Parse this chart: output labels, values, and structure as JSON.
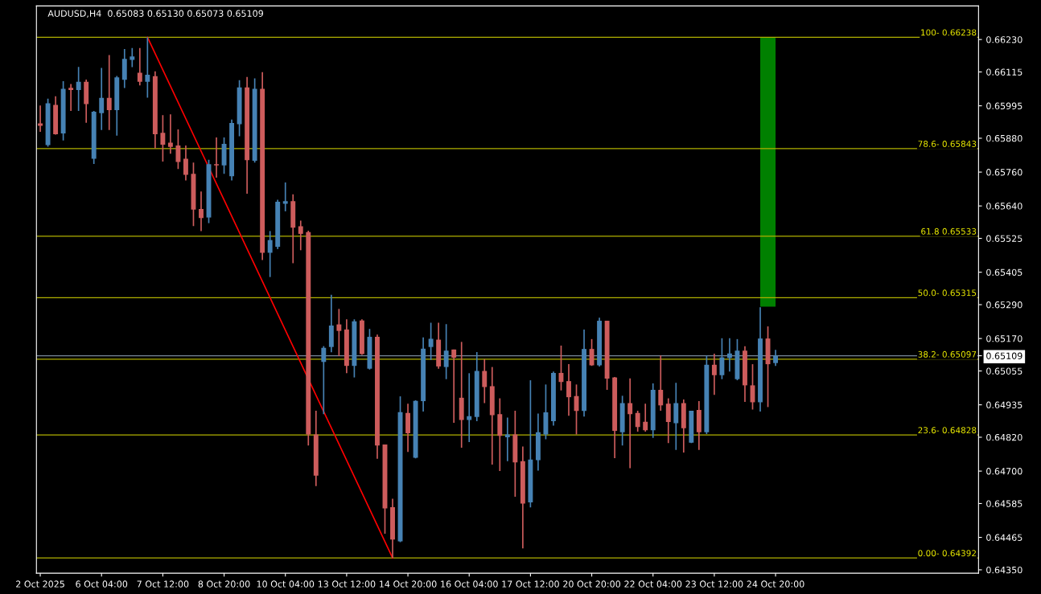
{
  "chart_data": {
    "type": "candlestick",
    "title": "AUDUSD,H4  0.65083 0.65130 0.65073 0.65109",
    "categories": [
      "2 Oct 2025",
      null,
      null,
      null,
      null,
      null,
      null,
      null,
      "6 Oct 04:00",
      null,
      null,
      null,
      null,
      null,
      null,
      null,
      "7 Oct 12:00",
      null,
      null,
      null,
      null,
      null,
      null,
      null,
      "8 Oct 20:00",
      null,
      null,
      null,
      null,
      null,
      null,
      null,
      "10 Oct 04:00",
      null,
      null,
      null,
      null,
      null,
      null,
      null,
      "13 Oct 12:00",
      null,
      null,
      null,
      null,
      null,
      null,
      null,
      "14 Oct 20:00",
      null,
      null,
      null,
      null,
      null,
      null,
      null,
      "16 Oct 04:00",
      null,
      null,
      null,
      null,
      null,
      null,
      null,
      "17 Oct 12:00",
      null,
      null,
      null,
      null,
      null,
      null,
      null,
      "20 Oct 20:00",
      null,
      null,
      null,
      null,
      null,
      null,
      null,
      "22 Oct 04:00",
      null,
      null,
      null,
      null,
      null,
      null,
      null,
      "23 Oct 12:00",
      null,
      null,
      null,
      null,
      null,
      null,
      null,
      "24 Oct 20:00",
      null,
      null,
      null,
      null,
      null,
      null,
      null,
      null,
      null,
      null,
      null,
      null,
      null,
      null,
      null,
      null,
      null,
      null,
      null,
      null,
      null,
      null,
      null,
      null,
      null,
      null
    ],
    "ohlc": [
      [
        0.65933,
        0.65996,
        0.65903,
        0.65924
      ],
      [
        0.65856,
        0.6602,
        0.6585,
        0.66004
      ],
      [
        0.65998,
        0.66029,
        0.65893,
        0.65894
      ],
      [
        0.65897,
        0.66082,
        0.65872,
        0.66055
      ],
      [
        0.66059,
        0.66072,
        0.65977,
        0.66051
      ],
      [
        0.66051,
        0.66133,
        0.65977,
        0.6608
      ],
      [
        0.6608,
        0.66088,
        0.65935,
        0.66001
      ],
      [
        0.65807,
        0.65977,
        0.65789,
        0.65974
      ],
      [
        0.65969,
        0.66129,
        0.65909,
        0.66023
      ],
      [
        0.66023,
        0.66175,
        0.65909,
        0.6598
      ],
      [
        0.6598,
        0.66101,
        0.65889,
        0.66096
      ],
      [
        0.66087,
        0.66196,
        0.66058,
        0.66161
      ],
      [
        0.66158,
        0.662,
        0.66132,
        0.6617
      ],
      [
        0.66112,
        0.662,
        0.66067,
        0.6608
      ],
      [
        0.6608,
        0.66238,
        0.66024,
        0.66105
      ],
      [
        0.661,
        0.66117,
        0.65844,
        0.65894
      ],
      [
        0.65899,
        0.65962,
        0.65797,
        0.65857
      ],
      [
        0.65864,
        0.65965,
        0.65825,
        0.65849
      ],
      [
        0.65854,
        0.65911,
        0.65771,
        0.65796
      ],
      [
        0.65807,
        0.65854,
        0.6573,
        0.6575
      ],
      [
        0.65754,
        0.65794,
        0.65569,
        0.65627
      ],
      [
        0.65629,
        0.65691,
        0.65551,
        0.65597
      ],
      [
        0.65599,
        0.65804,
        0.65579,
        0.65788
      ],
      [
        0.65788,
        0.65883,
        0.6574,
        0.65784
      ],
      [
        0.65784,
        0.65883,
        0.65754,
        0.6586
      ],
      [
        0.65745,
        0.65946,
        0.6573,
        0.65934
      ],
      [
        0.6593,
        0.66086,
        0.65887,
        0.6606
      ],
      [
        0.6606,
        0.66097,
        0.65683,
        0.65802
      ],
      [
        0.658,
        0.66092,
        0.65794,
        0.66055
      ],
      [
        0.66055,
        0.66114,
        0.65448,
        0.65474
      ],
      [
        0.65474,
        0.65551,
        0.65388,
        0.65519
      ],
      [
        0.65495,
        0.65662,
        0.65487,
        0.65655
      ],
      [
        0.65648,
        0.65723,
        0.65621,
        0.65657
      ],
      [
        0.65657,
        0.65681,
        0.65437,
        0.65563
      ],
      [
        0.65568,
        0.65588,
        0.65483,
        0.65541
      ],
      [
        0.65547,
        0.65552,
        0.64791,
        0.6483
      ],
      [
        0.6483,
        0.64914,
        0.64647,
        0.64684
      ],
      [
        0.65087,
        0.65143,
        0.64902,
        0.65137
      ],
      [
        0.6514,
        0.65325,
        0.65121,
        0.65216
      ],
      [
        0.6522,
        0.65275,
        0.65108,
        0.65197
      ],
      [
        0.65202,
        0.65238,
        0.65047,
        0.65073
      ],
      [
        0.65073,
        0.65238,
        0.65032,
        0.65231
      ],
      [
        0.65234,
        0.65238,
        0.65112,
        0.65115
      ],
      [
        0.65063,
        0.65204,
        0.6506,
        0.65176
      ],
      [
        0.65176,
        0.65184,
        0.64744,
        0.64791
      ],
      [
        0.64794,
        0.64794,
        0.64478,
        0.64568
      ],
      [
        0.64572,
        0.64602,
        0.64392,
        0.64457
      ],
      [
        0.64451,
        0.64965,
        0.64448,
        0.64909
      ],
      [
        0.64906,
        0.64939,
        0.64768,
        0.64834
      ],
      [
        0.64747,
        0.64951,
        0.64745,
        0.64949
      ],
      [
        0.64948,
        0.65174,
        0.64911,
        0.65134
      ],
      [
        0.6514,
        0.65226,
        0.65094,
        0.65169
      ],
      [
        0.65166,
        0.65226,
        0.65063,
        0.65071
      ],
      [
        0.65069,
        0.65221,
        0.65026,
        0.65127
      ],
      [
        0.65131,
        0.65131,
        0.64871,
        0.65102
      ],
      [
        0.6496,
        0.65158,
        0.64783,
        0.64881
      ],
      [
        0.64881,
        0.65047,
        0.64803,
        0.64895
      ],
      [
        0.64892,
        0.65122,
        0.64877,
        0.65055
      ],
      [
        0.65055,
        0.65097,
        0.64941,
        0.64998
      ],
      [
        0.65001,
        0.65069,
        0.64723,
        0.64898
      ],
      [
        0.64902,
        0.64958,
        0.647,
        0.64825
      ],
      [
        0.6482,
        0.6489,
        0.64735,
        0.6483
      ],
      [
        0.6483,
        0.64914,
        0.64609,
        0.64731
      ],
      [
        0.64735,
        0.64787,
        0.64426,
        0.64585
      ],
      [
        0.64589,
        0.65022,
        0.64571,
        0.64741
      ],
      [
        0.64739,
        0.64904,
        0.64702,
        0.64838
      ],
      [
        0.6483,
        0.65007,
        0.64813,
        0.64908
      ],
      [
        0.64877,
        0.65053,
        0.64861,
        0.65048
      ],
      [
        0.65048,
        0.65145,
        0.64986,
        0.65016
      ],
      [
        0.65019,
        0.65079,
        0.64896,
        0.64962
      ],
      [
        0.64966,
        0.65007,
        0.6483,
        0.64913
      ],
      [
        0.64913,
        0.65202,
        0.64893,
        0.65133
      ],
      [
        0.65133,
        0.65168,
        0.65073,
        0.65075
      ],
      [
        0.65075,
        0.65244,
        0.65071,
        0.65233
      ],
      [
        0.65233,
        0.65233,
        0.64988,
        0.65028
      ],
      [
        0.65032,
        0.65034,
        0.64746,
        0.64843
      ],
      [
        0.64838,
        0.64967,
        0.64791,
        0.64941
      ],
      [
        0.64941,
        0.65029,
        0.6471,
        0.64902
      ],
      [
        0.64906,
        0.64914,
        0.6484,
        0.64856
      ],
      [
        0.64875,
        0.64939,
        0.6484,
        0.64845
      ],
      [
        0.64845,
        0.65011,
        0.64818,
        0.64988
      ],
      [
        0.64988,
        0.6511,
        0.64914,
        0.64933
      ],
      [
        0.64939,
        0.64958,
        0.64799,
        0.64874
      ],
      [
        0.6487,
        0.65013,
        0.64775,
        0.64941
      ],
      [
        0.64941,
        0.64954,
        0.64766,
        0.64852
      ],
      [
        0.64801,
        0.64914,
        0.64799,
        0.64914
      ],
      [
        0.64917,
        0.64948,
        0.64775,
        0.64838
      ],
      [
        0.64838,
        0.6511,
        0.64831,
        0.65077
      ],
      [
        0.65077,
        0.65116,
        0.6497,
        0.6504
      ],
      [
        0.6504,
        0.65171,
        0.65026,
        0.65103
      ],
      [
        0.65101,
        0.65171,
        0.65053,
        0.65117
      ],
      [
        0.65026,
        0.65168,
        0.65022,
        0.65127
      ],
      [
        0.65127,
        0.65143,
        0.64945,
        0.65004
      ],
      [
        0.65004,
        0.65079,
        0.64918,
        0.64944
      ],
      [
        0.64944,
        0.65281,
        0.64911,
        0.6517
      ],
      [
        0.6517,
        0.65213,
        0.64927,
        0.65079
      ],
      [
        0.65083,
        0.6513,
        0.65073,
        0.65109
      ],
      null,
      null,
      null,
      null,
      null,
      null,
      null,
      null,
      null,
      null,
      null,
      null,
      null,
      null,
      null,
      null,
      null,
      null,
      null,
      null,
      null,
      null,
      null,
      null,
      null,
      null
    ],
    "colors": [
      "#cd5c5c",
      "#4682b4",
      "#cd5c5c",
      "#4682b4",
      "#cd5c5c",
      "#4682b4",
      "#cd5c5c",
      "#4682b4",
      "#4682b4",
      "#cd5c5c",
      "#4682b4",
      "#4682b4",
      "#4682b4",
      "#cd5c5c",
      "#4682b4",
      "#cd5c5c",
      "#cd5c5c",
      "#cd5c5c",
      "#cd5c5c",
      "#cd5c5c",
      "#cd5c5c",
      "#cd5c5c",
      "#4682b4",
      "#cd5c5c",
      "#4682b4",
      "#4682b4",
      "#4682b4",
      "#cd5c5c",
      "#4682b4",
      "#cd5c5c",
      "#4682b4",
      "#4682b4",
      "#4682b4",
      "#cd5c5c",
      "#cd5c5c",
      "#cd5c5c",
      "#cd5c5c",
      "#4682b4",
      "#4682b4",
      "#cd5c5c",
      "#cd5c5c",
      "#4682b4",
      "#cd5c5c",
      "#4682b4",
      "#cd5c5c",
      "#cd5c5c",
      "#cd5c5c",
      "#4682b4",
      "#cd5c5c",
      "#4682b4",
      "#4682b4",
      "#4682b4",
      "#cd5c5c",
      "#4682b4",
      "#cd5c5c",
      "#cd5c5c",
      "#4682b4",
      "#4682b4",
      "#cd5c5c",
      "#cd5c5c",
      "#cd5c5c",
      "#4682b4",
      "#cd5c5c",
      "#cd5c5c",
      "#4682b4",
      "#4682b4",
      "#4682b4",
      "#4682b4",
      "#cd5c5c",
      "#cd5c5c",
      "#cd5c5c",
      "#4682b4",
      "#cd5c5c",
      "#4682b4",
      "#cd5c5c",
      "#cd5c5c",
      "#4682b4",
      "#cd5c5c",
      "#cd5c5c",
      "#cd5c5c",
      "#4682b4",
      "#cd5c5c",
      "#cd5c5c",
      "#4682b4",
      "#cd5c5c",
      "#4682b4",
      "#cd5c5c",
      "#4682b4",
      "#cd5c5c",
      "#4682b4",
      "#4682b4",
      "#4682b4",
      "#cd5c5c",
      "#cd5c5c",
      "#4682b4",
      "#cd5c5c",
      "#4682b4",
      null,
      null,
      null,
      null,
      null,
      null,
      null,
      null,
      null,
      null,
      null,
      null,
      null,
      null,
      null,
      null,
      null,
      null,
      null,
      null,
      null,
      null,
      null,
      null,
      null,
      null
    ],
    "series": [
      {
        "type": "line",
        "color": "#ff0000",
        "values": [
          null,
          null,
          null,
          null,
          null,
          null,
          null,
          null,
          null,
          null,
          null,
          null,
          null,
          null,
          0.66238,
          null,
          null,
          null,
          null,
          null,
          null,
          null,
          null,
          null,
          null,
          null,
          null,
          null,
          null,
          null,
          null,
          null,
          null,
          null,
          null,
          null,
          null,
          null,
          null,
          null,
          null,
          null,
          null,
          null,
          null,
          null,
          0.64392,
          null,
          null,
          null,
          null,
          null,
          null,
          null,
          null,
          null,
          null,
          null,
          null,
          null,
          null,
          null,
          null,
          null,
          null,
          null,
          null,
          null,
          null,
          null,
          null,
          null,
          null,
          null,
          null,
          null,
          null,
          null,
          null,
          null,
          null,
          null,
          null,
          null,
          null,
          null,
          null,
          null,
          null,
          null,
          null,
          null,
          null,
          null,
          null,
          null,
          null,
          null,
          null,
          null,
          null,
          null,
          null,
          null,
          null,
          null,
          null,
          null,
          null,
          null,
          null,
          null,
          null,
          null,
          null,
          null,
          null,
          null,
          null,
          null,
          null,
          null,
          null
        ]
      },
      {
        "type": "bar",
        "color": "#008000",
        "base": [
          null,
          null,
          null,
          null,
          null,
          null,
          null,
          null,
          null,
          null,
          null,
          null,
          null,
          null,
          null,
          null,
          null,
          null,
          null,
          null,
          null,
          null,
          null,
          null,
          null,
          null,
          null,
          null,
          null,
          null,
          null,
          null,
          null,
          null,
          null,
          null,
          null,
          null,
          null,
          null,
          null,
          null,
          null,
          null,
          null,
          null,
          null,
          null,
          null,
          null,
          null,
          null,
          null,
          null,
          null,
          null,
          null,
          null,
          null,
          null,
          null,
          null,
          null,
          null,
          null,
          null,
          null,
          null,
          null,
          null,
          null,
          null,
          null,
          null,
          null,
          null,
          null,
          null,
          null,
          null,
          null,
          null,
          null,
          null,
          null,
          null,
          null,
          null,
          null,
          null,
          null,
          null,
          null,
          null,
          null,
          0.65283,
          null,
          null,
          null,
          null,
          null,
          null,
          null,
          null,
          null,
          null,
          null,
          null,
          null,
          null,
          null,
          null,
          null,
          null,
          null,
          null,
          null,
          null,
          null,
          null,
          null,
          null,
          null
        ],
        "values": [
          null,
          null,
          null,
          null,
          null,
          null,
          null,
          null,
          null,
          null,
          null,
          null,
          null,
          null,
          null,
          null,
          null,
          null,
          null,
          null,
          null,
          null,
          null,
          null,
          null,
          null,
          null,
          null,
          null,
          null,
          null,
          null,
          null,
          null,
          null,
          null,
          null,
          null,
          null,
          null,
          null,
          null,
          null,
          null,
          null,
          null,
          null,
          null,
          null,
          null,
          null,
          null,
          null,
          null,
          null,
          null,
          null,
          null,
          null,
          null,
          null,
          null,
          null,
          null,
          null,
          null,
          null,
          null,
          null,
          null,
          null,
          null,
          null,
          null,
          null,
          null,
          null,
          null,
          null,
          null,
          null,
          null,
          null,
          null,
          null,
          null,
          null,
          null,
          null,
          null,
          null,
          null,
          null,
          null,
          null,
          0.00955,
          null,
          null,
          null,
          null,
          null,
          null,
          null,
          null,
          null,
          null,
          null,
          null,
          null,
          null,
          null,
          null,
          null,
          null,
          null,
          null,
          null,
          null,
          null,
          null,
          null,
          null,
          null
        ]
      }
    ],
    "ylim": [
      0.64338,
      0.66349
    ],
    "yticks": [
      {
        "value": 0.6623,
        "label": "0.66230"
      },
      {
        "value": 0.66115,
        "label": "0.66115"
      },
      {
        "value": 0.65995,
        "label": "0.65995"
      },
      {
        "value": 0.6588,
        "label": "0.65880"
      },
      {
        "value": 0.6576,
        "label": "0.65760"
      },
      {
        "value": 0.6564,
        "label": "0.65640"
      },
      {
        "value": 0.65525,
        "label": "0.65525"
      },
      {
        "value": 0.65405,
        "label": "0.65405"
      },
      {
        "value": 0.6529,
        "label": "0.65290"
      },
      {
        "value": 0.6517,
        "label": "0.65170"
      },
      {
        "value": 0.65109,
        "label": "0.65109"
      },
      {
        "value": 0.65055,
        "label": "0.65055"
      },
      {
        "value": 0.64935,
        "label": "0.64935"
      },
      {
        "value": 0.6482,
        "label": "0.64820"
      },
      {
        "value": 0.647,
        "label": "0.64700"
      },
      {
        "value": 0.64585,
        "label": "0.64585"
      },
      {
        "value": 0.64465,
        "label": "0.64465"
      },
      {
        "value": 0.6435,
        "label": "0.64350"
      }
    ],
    "ref_lines": [
      {
        "axis": "y",
        "value": 0.66238,
        "color": "#b0b000"
      },
      {
        "axis": "y",
        "value": 0.65843,
        "color": "#b0b000"
      },
      {
        "axis": "y",
        "value": 0.65533,
        "color": "#b0b000"
      },
      {
        "axis": "y",
        "value": 0.65315,
        "color": "#b0b000"
      },
      {
        "axis": "y",
        "value": 0.65097,
        "color": "#b0b000"
      },
      {
        "axis": "y",
        "value": 0.64828,
        "color": "#b0b000"
      },
      {
        "axis": "y",
        "value": 0.64392,
        "color": "#b0b000"
      },
      {
        "axis": "y",
        "value": 0.65109,
        "color": "#778899"
      }
    ],
    "annotations": [
      {
        "text": "100- 0.66238",
        "y": 0.66238
      },
      {
        "text": "78.6- 0.65843",
        "y": 0.65843
      },
      {
        "text": "61.8 0.65533",
        "y": 0.65533
      },
      {
        "text": "50.0- 0.65315",
        "y": 0.65315
      },
      {
        "text": "38.2- 0.65097",
        "y": 0.65097
      },
      {
        "text": "23.6- 0.64828",
        "y": 0.64828
      },
      {
        "text": "0.00- 0.64392",
        "y": 0.64392
      }
    ],
    "grid": false
  }
}
